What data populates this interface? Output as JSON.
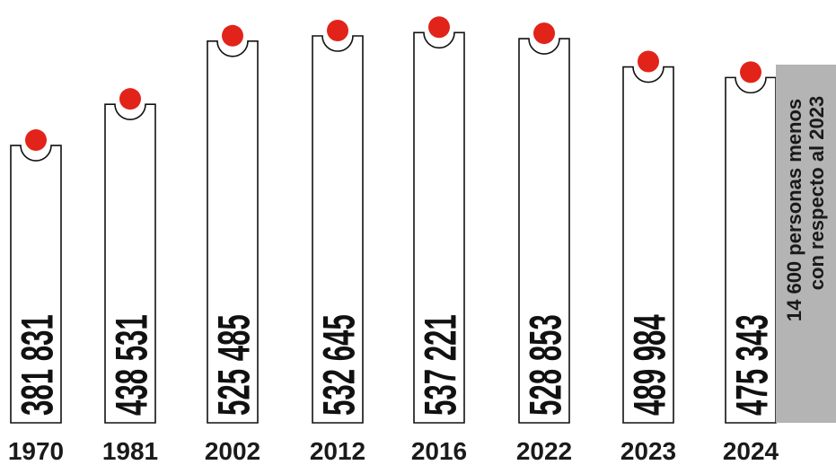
{
  "chart_data": {
    "type": "bar",
    "categories": [
      "1970",
      "1981",
      "2002",
      "2012",
      "2016",
      "2022",
      "2023",
      "2024"
    ],
    "values": [
      381831,
      438531,
      525485,
      532645,
      537221,
      528853,
      489984,
      475343
    ],
    "value_labels": [
      "381 831",
      "438 531",
      "525 485",
      "532 645",
      "537 221",
      "528 853",
      "489 984",
      "475 343"
    ],
    "title": "",
    "xlabel": "",
    "ylabel": "",
    "ylim": [
      0,
      545000
    ],
    "annotation": {
      "line1": "14 600 personas menos",
      "line2": "con respecto al 2023"
    }
  },
  "colors": {
    "bulb": "#e2231a",
    "note_background": "#b4b4b4",
    "outline": "#111111"
  }
}
